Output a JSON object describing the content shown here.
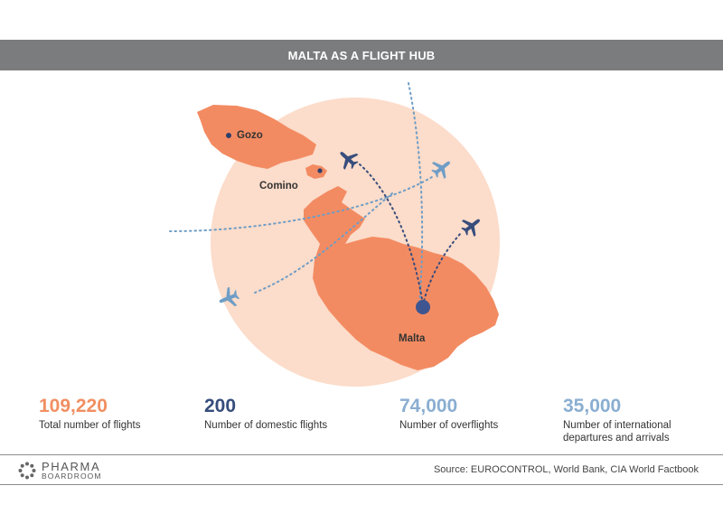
{
  "title": "MALTA AS A FLIGHT HUB",
  "map_labels": {
    "gozo": "Gozo",
    "comino": "Comino",
    "malta": "Malta"
  },
  "stats": [
    {
      "value": "109,220",
      "label_lines": [
        "Total number of flights"
      ],
      "color": "#f08f62"
    },
    {
      "value": "200",
      "label_lines": [
        "Number of domestic flights"
      ],
      "color": "#374d7c"
    },
    {
      "value": "74,000",
      "label_lines": [
        "Number of overflights"
      ],
      "color": "#8aaed1"
    },
    {
      "value": "35,000",
      "label_lines": [
        "Number of international",
        "departures and arrivals"
      ],
      "color": "#8aaed1"
    }
  ],
  "footer": {
    "logo_line1": "PHARMA",
    "logo_line2": "BOARDROOM",
    "source": "Source: EUROCONTROL, World Bank, CIA World Factbook"
  },
  "colors": {
    "island": "#f38b62",
    "circle": "#fcdcca",
    "dark_route": "#374d7c",
    "light_route": "#6e9dc6",
    "title_bar": "#7b7c7e"
  },
  "icons": [
    "airplane-icon",
    "airport-hub-marker",
    "logo-dots-icon"
  ]
}
